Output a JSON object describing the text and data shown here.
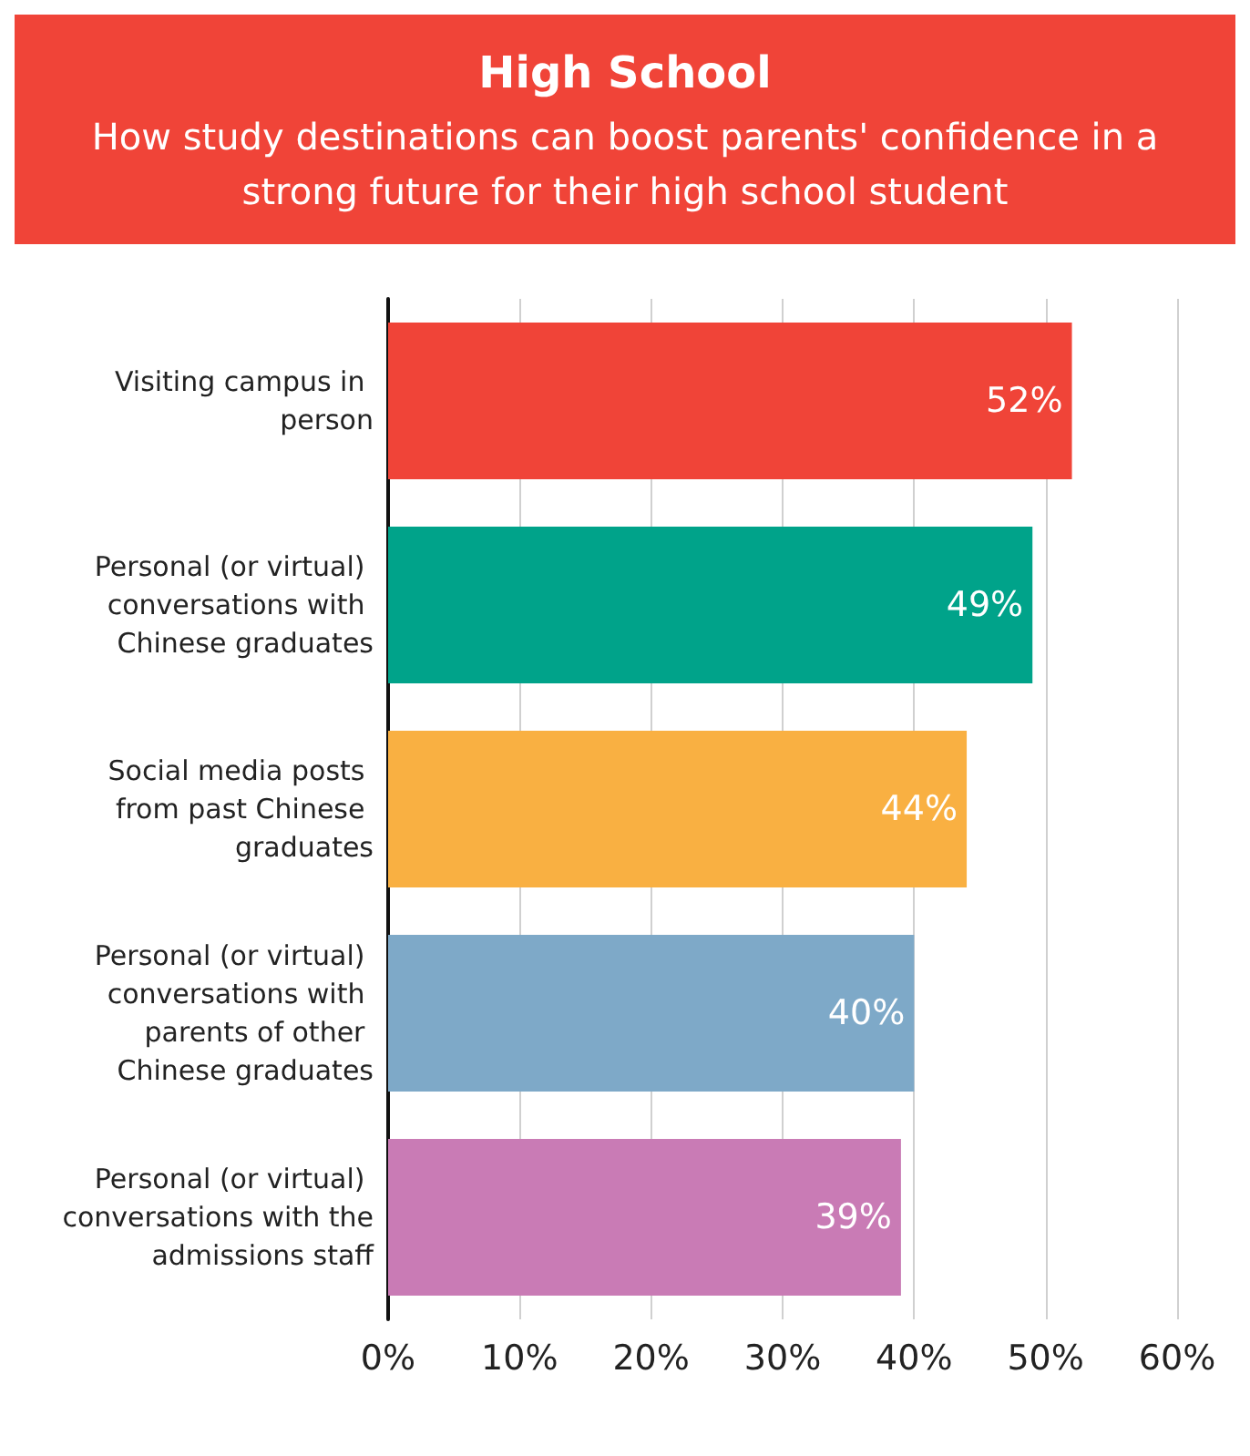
{
  "chart_data": {
    "type": "bar",
    "orientation": "horizontal",
    "title": "High School",
    "subtitle": "How study destinations can boost parents' confidence in a strong future for their high school student",
    "categories": [
      "Visiting campus in person",
      "Personal (or virtual) conversations with Chinese graduates",
      "Social media posts from past Chinese graduates",
      "Personal (or virtual) conversations with parents of other Chinese graduates",
      "Personal (or virtual) conversations with the admissions staff"
    ],
    "values": [
      52,
      49,
      44,
      40,
      39
    ],
    "colors": [
      "#f04438",
      "#00a38a",
      "#f9b042",
      "#7ea9c8",
      "#c97bb5"
    ],
    "value_labels": [
      "52%",
      "49%",
      "44%",
      "40%",
      "39%"
    ],
    "xlim": [
      0,
      60
    ],
    "xticks": [
      {
        "value": 0,
        "label": "0%"
      },
      {
        "value": 10,
        "label": "10%"
      },
      {
        "value": 20,
        "label": "20%"
      },
      {
        "value": 30,
        "label": "30%"
      },
      {
        "value": 40,
        "label": "40%"
      },
      {
        "value": 50,
        "label": "50%"
      },
      {
        "value": 60,
        "label": "60%"
      }
    ],
    "grid": "x"
  }
}
